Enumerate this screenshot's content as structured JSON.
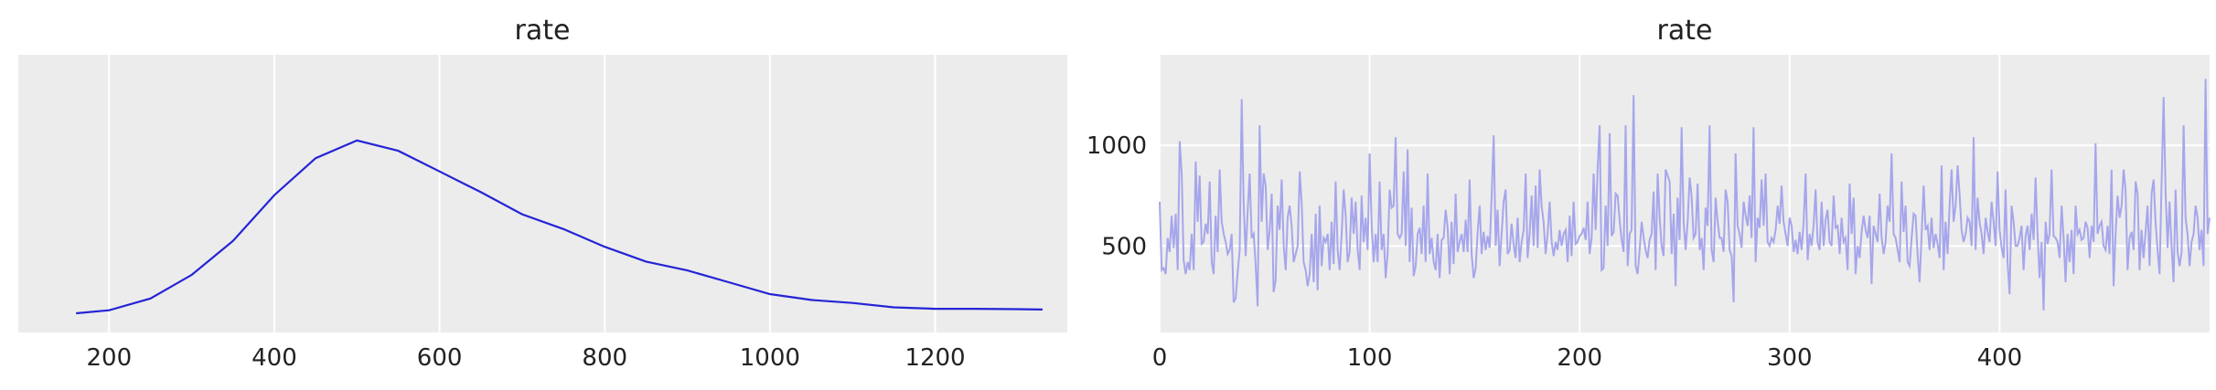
{
  "chart_data": [
    {
      "type": "line",
      "title": "rate",
      "xlabel": "",
      "ylabel": "",
      "xlim": [
        90,
        1360
      ],
      "ylim": [
        -5e-05,
        0.00183
      ],
      "xticks": [
        200,
        400,
        600,
        800,
        1000,
        1200
      ],
      "yticks_visible": false,
      "grid": true,
      "background": "#ececec",
      "line_color": "#2424d6",
      "series": [
        {
          "x": [
            160,
            200,
            250,
            300,
            350,
            400,
            450,
            500,
            550,
            600,
            650,
            700,
            750,
            800,
            850,
            900,
            950,
            1000,
            1050,
            1100,
            1150,
            1200,
            1250,
            1300,
            1330
          ],
          "values": [
            8e-05,
            0.0001,
            0.00018,
            0.00034,
            0.00057,
            0.00088,
            0.00113,
            0.00125,
            0.00118,
            0.00104,
            0.0009,
            0.00075,
            0.00065,
            0.00053,
            0.00043,
            0.00037,
            0.00029,
            0.00021,
            0.00017,
            0.00015,
            0.00012,
            0.00011,
            0.00011,
            0.000108,
            0.000105
          ]
        }
      ]
    },
    {
      "type": "line",
      "title": "rate",
      "xlabel": "",
      "ylabel": "",
      "xlim": [
        0,
        500
      ],
      "ylim": [
        70,
        1450
      ],
      "xticks": [
        0,
        100,
        200,
        300,
        400
      ],
      "yticks": [
        500,
        1000
      ],
      "grid": true,
      "background": "#ececec",
      "line_color": "#a6a6ec",
      "series": [
        {
          "values": [
            720,
            380,
            390,
            360,
            540,
            470,
            650,
            490,
            660,
            380,
            1020,
            860,
            430,
            360,
            420,
            380,
            560,
            380,
            920,
            620,
            850,
            510,
            520,
            610,
            560,
            820,
            420,
            360,
            650,
            470,
            880,
            620,
            560,
            520,
            460,
            480,
            560,
            220,
            240,
            370,
            480,
            1230,
            720,
            450,
            670,
            860,
            540,
            560,
            400,
            200,
            1100,
            620,
            860,
            800,
            480,
            580,
            760,
            270,
            330,
            700,
            580,
            830,
            500,
            380,
            640,
            700,
            600,
            420,
            460,
            500,
            870,
            710,
            420,
            380,
            300,
            360,
            560,
            320,
            660,
            280,
            700,
            400,
            540,
            520,
            560,
            380,
            620,
            410,
            820,
            480,
            380,
            560,
            780,
            650,
            420,
            470,
            740,
            560,
            720,
            480,
            380,
            750,
            520,
            640,
            480,
            960,
            600,
            420,
            560,
            420,
            820,
            480,
            560,
            340,
            470,
            780,
            690,
            700,
            1040,
            560,
            540,
            560,
            870,
            500,
            980,
            420,
            690,
            350,
            400,
            560,
            590,
            460,
            700,
            420,
            860,
            460,
            540,
            420,
            380,
            560,
            340,
            530,
            540,
            680,
            590,
            360,
            620,
            410,
            760,
            470,
            520,
            560,
            470,
            630,
            470,
            830,
            460,
            340,
            390,
            570,
            700,
            460,
            570,
            480,
            550,
            490,
            750,
            1050,
            500,
            680,
            400,
            560,
            720,
            780,
            460,
            480,
            610,
            510,
            440,
            640,
            420,
            520,
            580,
            860,
            440,
            560,
            750,
            500,
            800,
            490,
            880,
            700,
            620,
            460,
            560,
            720,
            520,
            450,
            520,
            480,
            580,
            500,
            560,
            580,
            420,
            650,
            450,
            720,
            510,
            520,
            550,
            560,
            590,
            530,
            720,
            460,
            540,
            860,
            580,
            890,
            1100,
            380,
            390,
            700,
            500,
            1060,
            550,
            570,
            760,
            750,
            630,
            530,
            470,
            1100,
            400,
            560,
            580,
            1250,
            400,
            360,
            480,
            620,
            540,
            480,
            440,
            530,
            560,
            770,
            380,
            860,
            640,
            500,
            450,
            880,
            850,
            820,
            460,
            660,
            300,
            740,
            530,
            1090,
            620,
            480,
            620,
            840,
            750,
            540,
            560,
            810,
            480,
            540,
            380,
            690,
            600,
            1100,
            480,
            420,
            740,
            620,
            540,
            540,
            470,
            780,
            720,
            480,
            450,
            220,
            960,
            600,
            560,
            490,
            720,
            650,
            600,
            750,
            540,
            1090,
            420,
            640,
            590,
            830,
            600,
            860,
            520,
            500,
            540,
            520,
            580,
            700,
            610,
            800,
            620,
            560,
            500,
            640,
            600,
            470,
            530,
            460,
            570,
            480,
            620,
            860,
            430,
            560,
            500,
            600,
            780,
            520,
            480,
            720,
            500,
            630,
            680,
            520,
            500,
            750,
            590,
            600,
            460,
            640,
            520,
            540,
            380,
            810,
            560,
            740,
            360,
            500,
            440,
            570,
            650,
            580,
            540,
            650,
            310,
            600,
            560,
            520,
            760,
            540,
            460,
            520,
            700,
            620,
            960,
            560,
            540,
            480,
            420,
            820,
            570,
            700,
            420,
            400,
            540,
            660,
            650,
            460,
            320,
            550,
            800,
            580,
            600,
            480,
            640,
            490,
            560,
            510,
            440,
            900,
            380,
            620,
            460,
            700,
            880,
            620,
            700,
            900,
            760,
            580,
            520,
            560,
            640,
            620,
            500,
            1040,
            480,
            740,
            620,
            560,
            460,
            640,
            570,
            520,
            720,
            620,
            500,
            870,
            580,
            490,
            440,
            780,
            420,
            260,
            700,
            620,
            500,
            500,
            540,
            600,
            380,
            550,
            600,
            480,
            660,
            530,
            840,
            560,
            340,
            520,
            180,
            620,
            510,
            560,
            880,
            550,
            540,
            520,
            440,
            700,
            540,
            320,
            560,
            420,
            580,
            360,
            700,
            560,
            580,
            530,
            540,
            620,
            590,
            440,
            600,
            520,
            1010,
            560,
            600,
            620,
            500,
            480,
            600,
            460,
            880,
            300,
            560,
            750,
            640,
            700,
            880,
            780,
            380,
            540,
            570,
            480,
            820,
            760,
            380,
            580,
            440,
            570,
            700,
            400,
            760,
            830,
            620,
            480,
            360,
            810,
            1240,
            760,
            490,
            720,
            500,
            320,
            780,
            470,
            400,
            470,
            1100,
            640,
            560,
            400,
            520,
            560,
            700,
            640,
            480,
            580,
            400,
            1330,
            560,
            640
          ]
        }
      ]
    }
  ]
}
